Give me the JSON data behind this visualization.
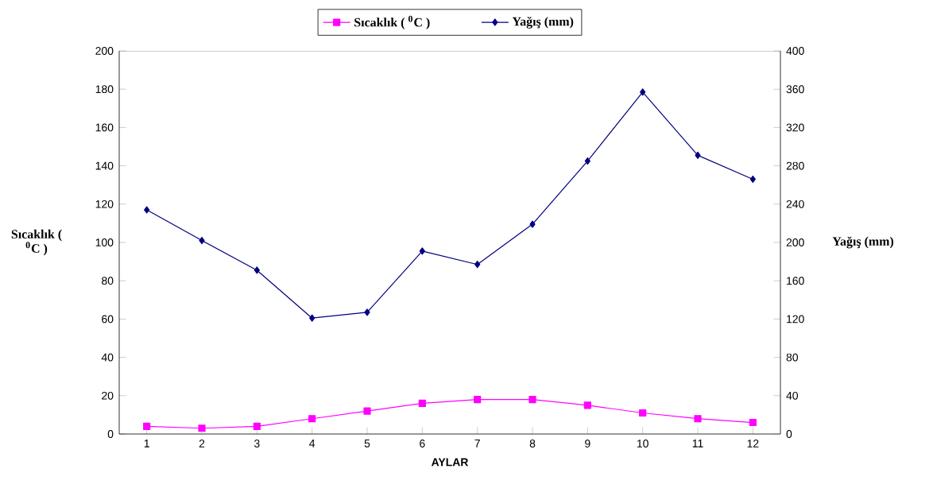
{
  "chart_data": {
    "type": "line",
    "xlabel": "AYLAR",
    "ylabel": "Sıcaklık ( $^{0}$C )",
    "y2label": "Yağış (mm)",
    "categories": [
      "1",
      "2",
      "3",
      "4",
      "5",
      "6",
      "7",
      "8",
      "9",
      "10",
      "11",
      "12"
    ],
    "series": [
      {
        "name": "Sıcaklık ( $^{0}$C )",
        "color": "#ff00ff",
        "marker": "square",
        "values": [
          4,
          3,
          4,
          8,
          12,
          16,
          18,
          18,
          15,
          11,
          8,
          6
        ]
      },
      {
        "name": "Yağış (mm)",
        "color": "#000080",
        "marker": "diamond",
        "axis": "y2",
        "values": [
          234,
          202,
          171,
          121,
          127,
          191,
          177,
          219,
          285,
          357,
          291,
          266
        ]
      }
    ],
    "ylim": [
      0,
      200
    ],
    "yticks": [
      0,
      20,
      40,
      60,
      80,
      100,
      120,
      140,
      160,
      180,
      200
    ],
    "y2lim": [
      0,
      400
    ],
    "y2ticks": [
      0,
      40,
      80,
      120,
      160,
      200,
      240,
      280,
      320,
      360,
      400
    ],
    "legend": "top",
    "grid": false,
    "line_style": "solid"
  }
}
